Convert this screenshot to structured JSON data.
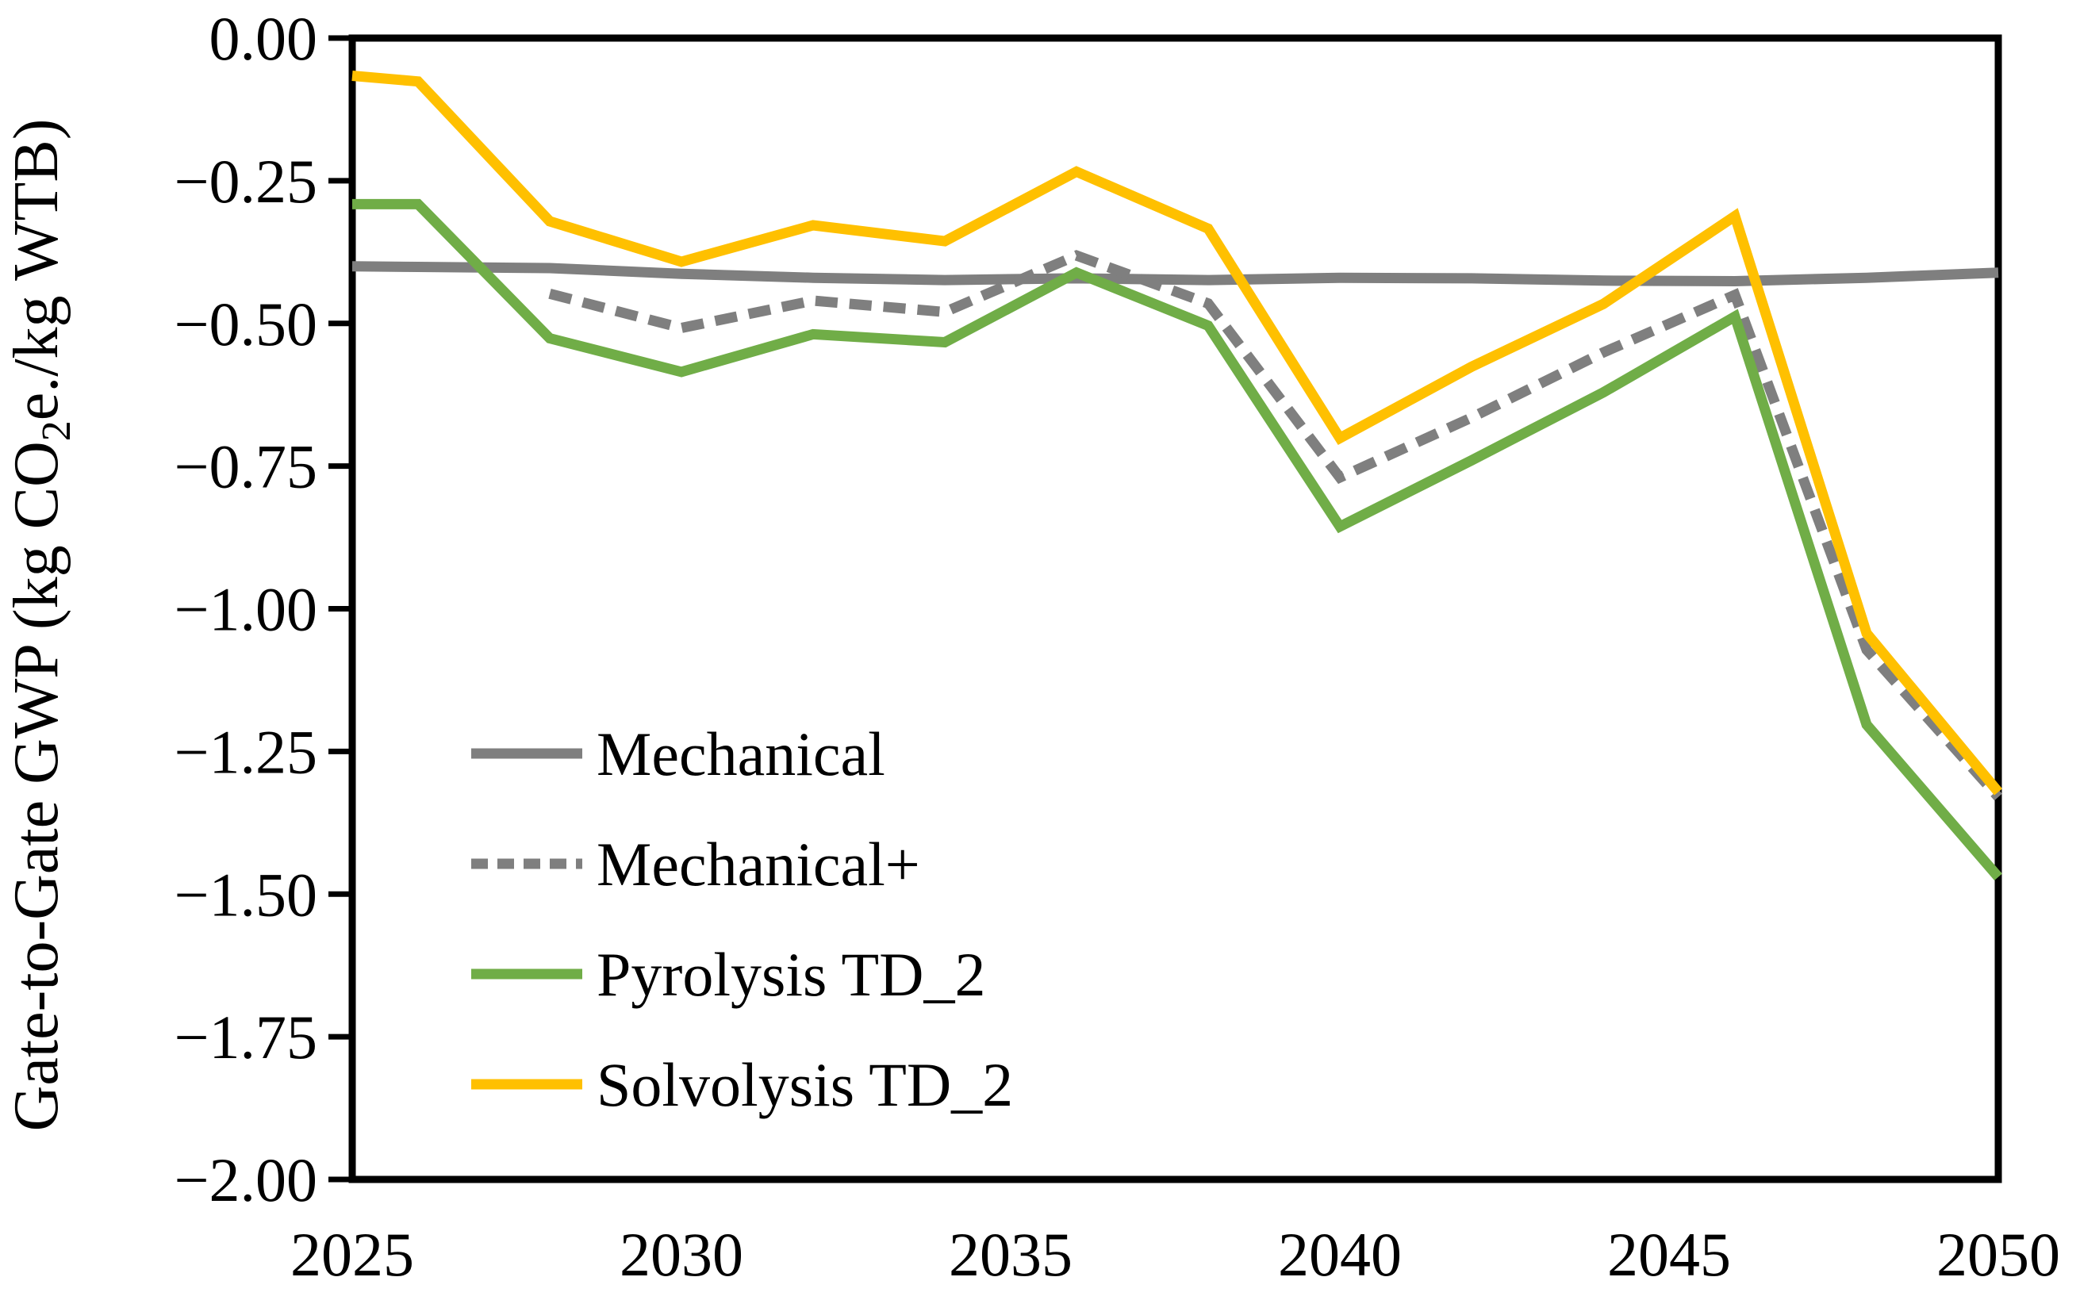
{
  "figure": {
    "background": "#ffffff",
    "axis_color": "#000000",
    "grid": false,
    "y_axis_title": {
      "pre": "Gate-to-Gate GWP (kg CO",
      "sub": "2",
      "post": "e./kg WTB)",
      "plain": "Gate-to-Gate GWP (kg CO2e./kg WTB)"
    }
  },
  "chart_data": {
    "type": "line",
    "title": "",
    "xlabel": "",
    "ylabel": "Gate-to-Gate GWP (kg CO2e./kg WTB)",
    "xlim": [
      2025,
      2050
    ],
    "ylim": [
      -2.0,
      0.0
    ],
    "grid": false,
    "legend_position": "inside-lower-left",
    "x_ticks": {
      "values": [
        2025,
        2030,
        2035,
        2040,
        2045,
        2050
      ],
      "labels": [
        "2025",
        "2030",
        "2035",
        "2040",
        "2045",
        "2050"
      ]
    },
    "y_ticks": {
      "values": [
        0.0,
        -0.25,
        -0.5,
        -0.75,
        -1.0,
        -1.25,
        -1.5,
        -1.75,
        -2.0
      ],
      "labels": [
        "0.00",
        "−0.25",
        "−0.50",
        "−0.75",
        "−1.00",
        "−1.25",
        "−1.50",
        "−1.75",
        "−2.00"
      ]
    },
    "series": [
      {
        "name": "Mechanical",
        "color": "#7F7F7F",
        "style": "solid",
        "x": [
          2025,
          2026,
          2028,
          2030,
          2032,
          2034,
          2036,
          2038,
          2040,
          2042,
          2044,
          2046,
          2048,
          2050
        ],
        "y": [
          -0.4,
          -0.401,
          -0.403,
          -0.413,
          -0.42,
          -0.424,
          -0.421,
          -0.424,
          -0.42,
          -0.421,
          -0.425,
          -0.426,
          -0.42,
          -0.411
        ]
      },
      {
        "name": "Mechanical+",
        "color": "#7F7F7F",
        "style": "dashed",
        "x": [
          2028,
          2030,
          2032,
          2034,
          2036,
          2038,
          2040,
          2042,
          2044,
          2046,
          2048,
          2050
        ],
        "y": [
          -0.448,
          -0.508,
          -0.46,
          -0.48,
          -0.381,
          -0.465,
          -0.77,
          -0.665,
          -0.551,
          -0.45,
          -1.072,
          -1.33
        ]
      },
      {
        "name": "Pyrolysis TD_2",
        "color": "#70AD47",
        "style": "solid",
        "x": [
          2025,
          2026,
          2028,
          2030,
          2032,
          2034,
          2036,
          2038,
          2040,
          2042,
          2044,
          2046,
          2048,
          2050
        ],
        "y": [
          -0.291,
          -0.291,
          -0.526,
          -0.585,
          -0.519,
          -0.533,
          -0.411,
          -0.504,
          -0.856,
          -0.74,
          -0.621,
          -0.488,
          -1.203,
          -1.47
        ]
      },
      {
        "name": "Solvolysis TD_2",
        "color": "#FFC000",
        "style": "solid",
        "x": [
          2025,
          2026,
          2028,
          2030,
          2032,
          2034,
          2036,
          2038,
          2040,
          2042,
          2044,
          2046,
          2048,
          2050
        ],
        "y": [
          -0.066,
          -0.076,
          -0.321,
          -0.392,
          -0.328,
          -0.356,
          -0.234,
          -0.334,
          -0.701,
          -0.576,
          -0.466,
          -0.312,
          -1.043,
          -1.321
        ]
      }
    ]
  },
  "legend": {
    "items": [
      {
        "label": "Mechanical",
        "style": "solid",
        "color": "#7F7F7F"
      },
      {
        "label": "Mechanical+",
        "style": "dashed",
        "color": "#7F7F7F"
      },
      {
        "label": "Pyrolysis TD_2",
        "style": "solid",
        "color": "#70AD47"
      },
      {
        "label": "Solvolysis TD_2",
        "style": "solid",
        "color": "#FFC000"
      }
    ]
  }
}
